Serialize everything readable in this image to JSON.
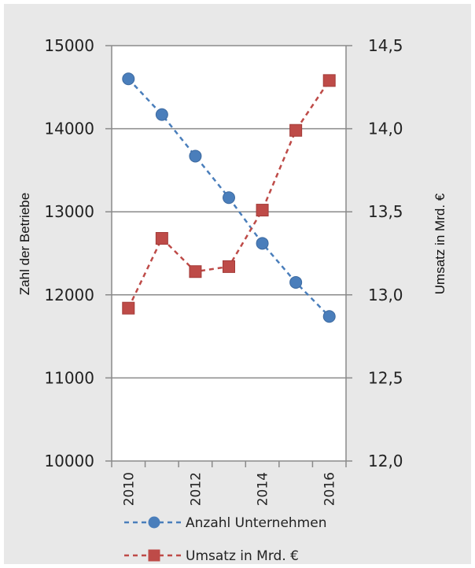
{
  "chart_data": {
    "type": "line",
    "x": [
      2010,
      2011,
      2012,
      2013,
      2014,
      2015,
      2016
    ],
    "x_tick_labels": [
      "2010",
      "2012",
      "2014",
      "2016"
    ],
    "series": [
      {
        "name": "Anzahl Unternehmen",
        "axis": "left",
        "values": [
          14600,
          14170,
          13670,
          13170,
          12620,
          12150,
          11740
        ],
        "color": "#4a7ebb",
        "marker": "circle",
        "line_style": "dashed"
      },
      {
        "name": "Umsatz in Mrd. €",
        "axis": "right",
        "values": [
          12.92,
          13.34,
          13.14,
          13.17,
          13.51,
          13.99,
          14.29
        ],
        "color": "#be4b48",
        "marker": "square",
        "line_style": "dashed"
      }
    ],
    "ylabel_left": "Zahl der Betriebe",
    "ylabel_right": "Umsatz in Mrd. €",
    "ylim_left": [
      10000,
      15000
    ],
    "ylim_right": [
      12.0,
      14.5
    ],
    "yticks_left": [
      "10000",
      "11000",
      "12000",
      "13000",
      "14000",
      "15000"
    ],
    "yticks_right": [
      "12,0",
      "12,5",
      "13,0",
      "13,5",
      "14,0",
      "14,5"
    ],
    "grid": "horizontal",
    "legend_position": "bottom"
  }
}
